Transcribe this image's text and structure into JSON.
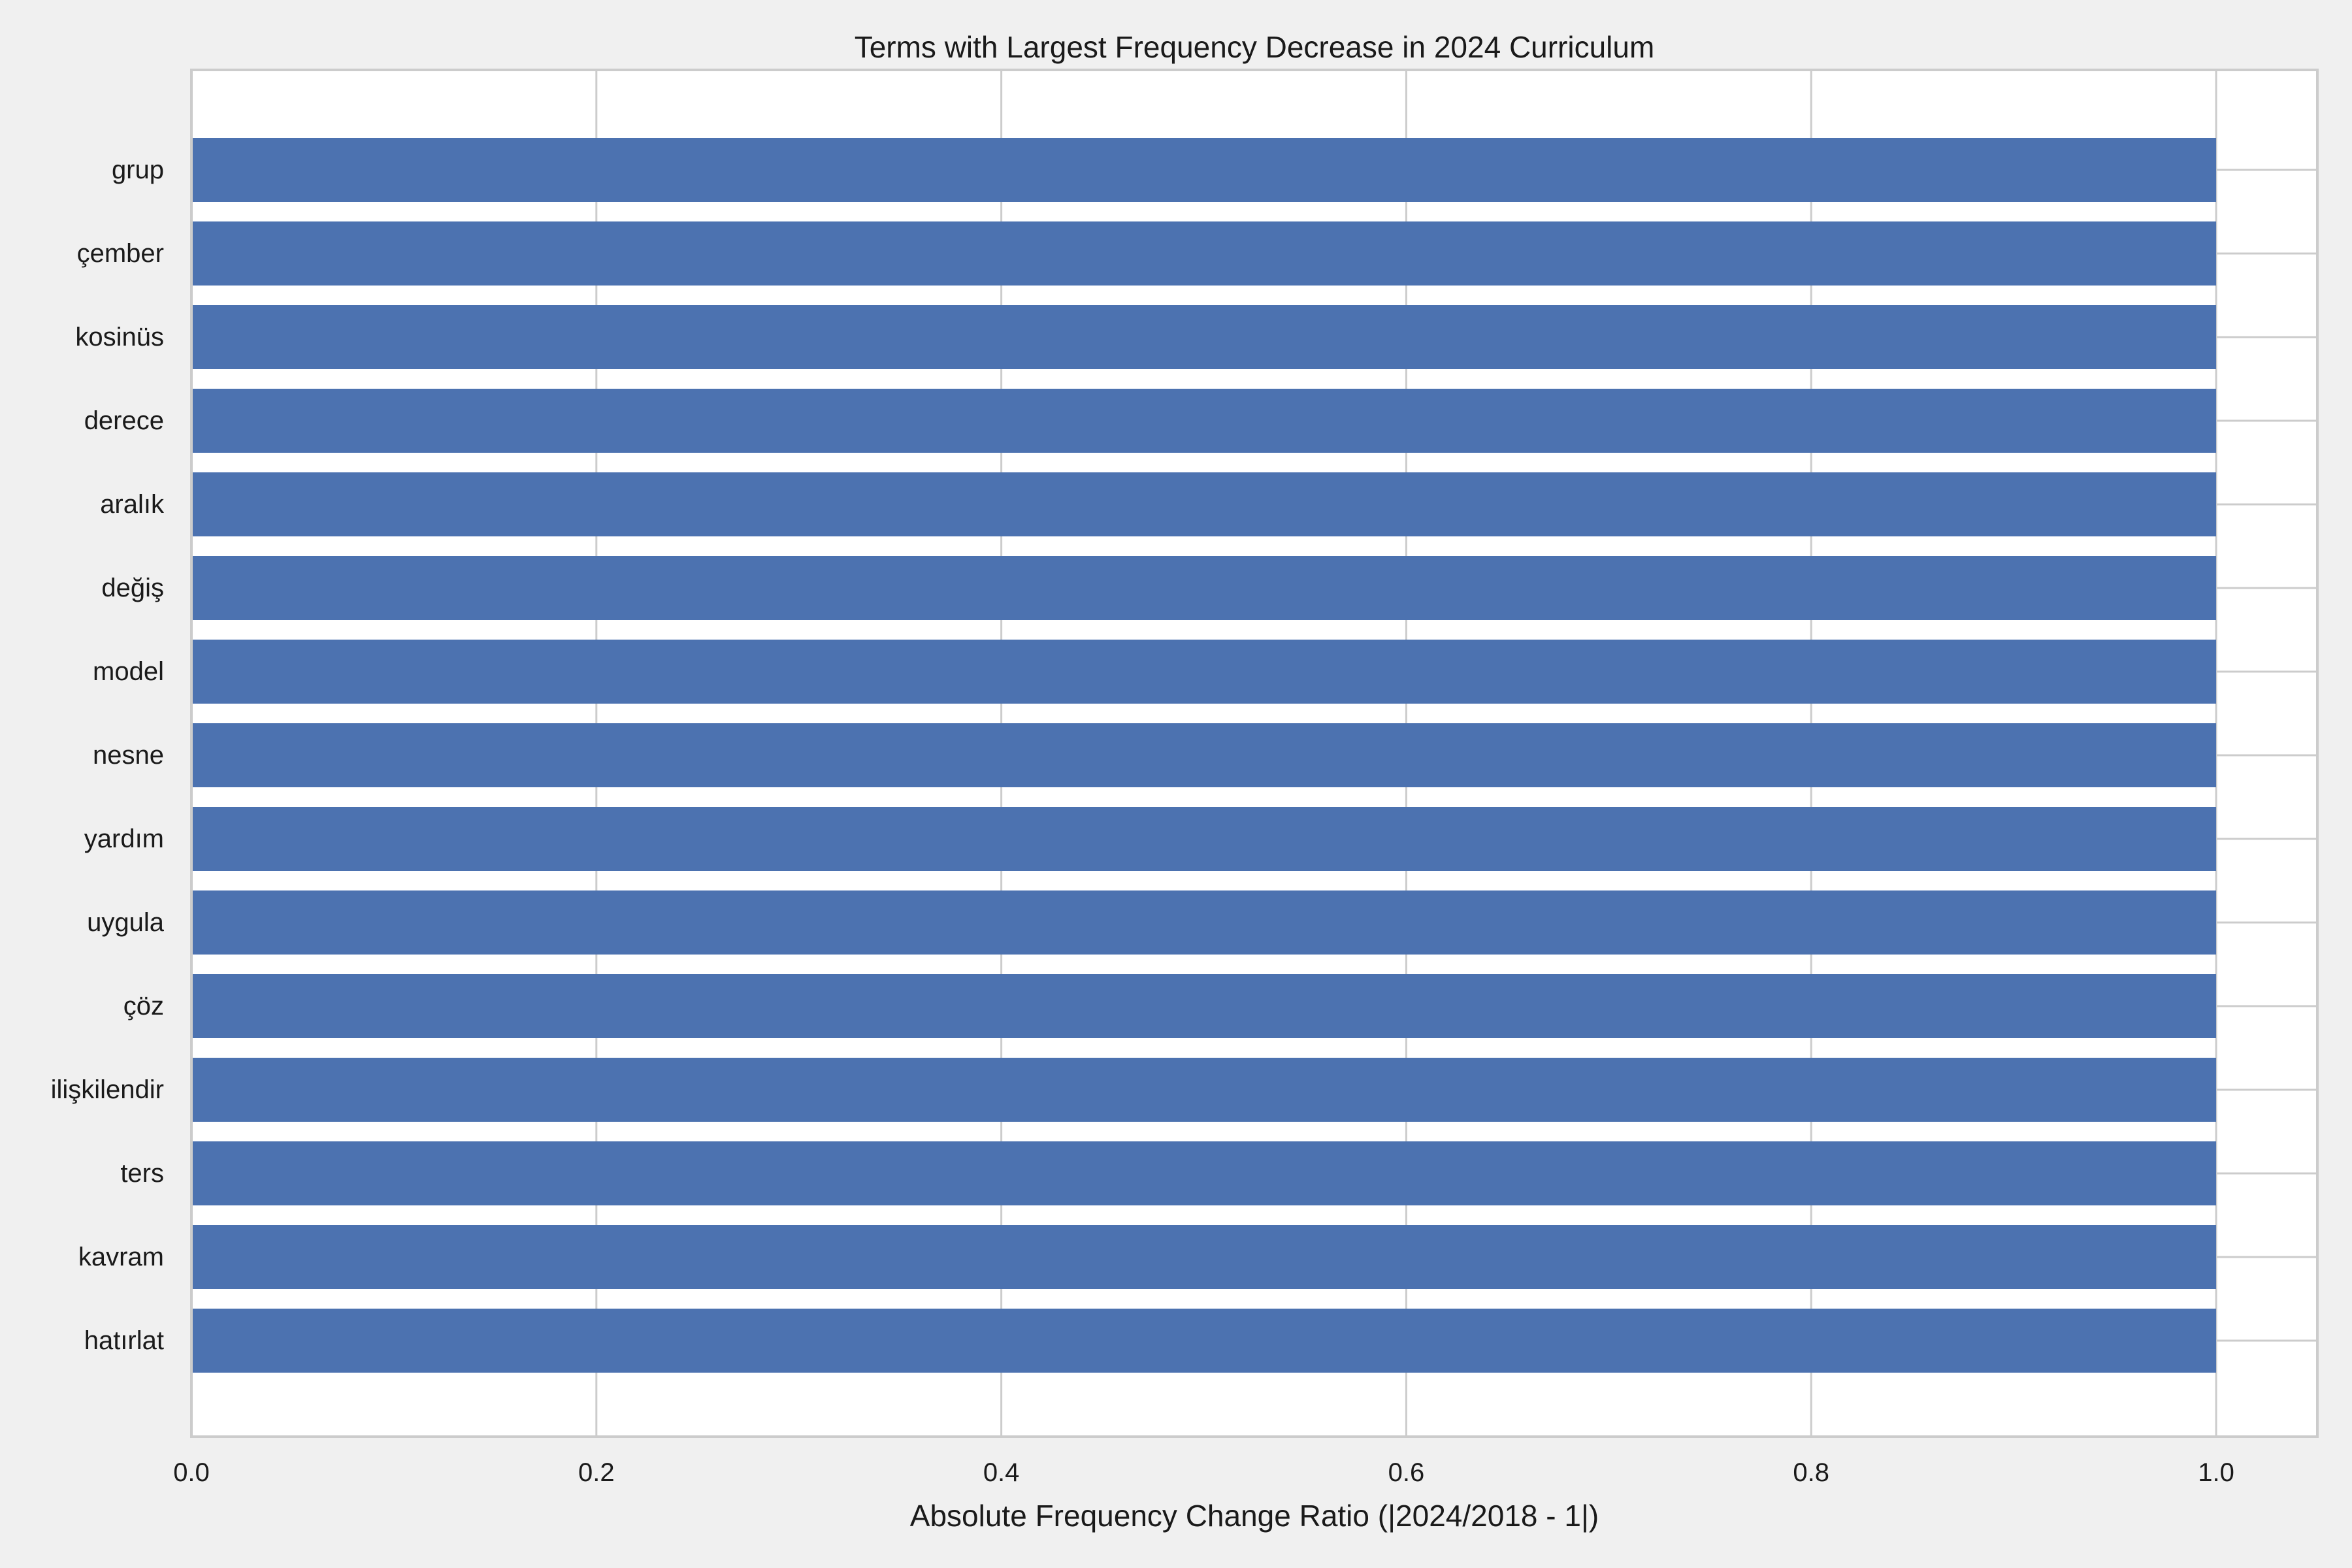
{
  "chart_data": {
    "type": "bar",
    "orientation": "horizontal",
    "title": "Terms with Largest Frequency Decrease in 2024 Curriculum",
    "xlabel": "Absolute Frequency Change Ratio (|2024/2018 - 1|)",
    "ylabel": "",
    "categories": [
      "grup",
      "çember",
      "kosinüs",
      "derece",
      "aralık",
      "değiş",
      "model",
      "nesne",
      "yardım",
      "uygula",
      "çöz",
      "ilişkilendir",
      "ters",
      "kavram",
      "hatırlat"
    ],
    "values": [
      1.0,
      1.0,
      1.0,
      1.0,
      1.0,
      1.0,
      1.0,
      1.0,
      1.0,
      1.0,
      1.0,
      1.0,
      1.0,
      1.0,
      1.0
    ],
    "xlim": [
      0,
      1.05
    ],
    "xticks": [
      "0.0",
      "0.2",
      "0.4",
      "0.6",
      "0.8",
      "1.0"
    ],
    "xtick_values": [
      0,
      0.2,
      0.4,
      0.6,
      0.8,
      1.0
    ],
    "grid": true,
    "colors": {
      "bar": "#4c72b0",
      "grid": "#cccccc",
      "plot_bg": "#ffffff",
      "figure_bg": "#f0f0f0",
      "spine": "#cccccc"
    }
  }
}
